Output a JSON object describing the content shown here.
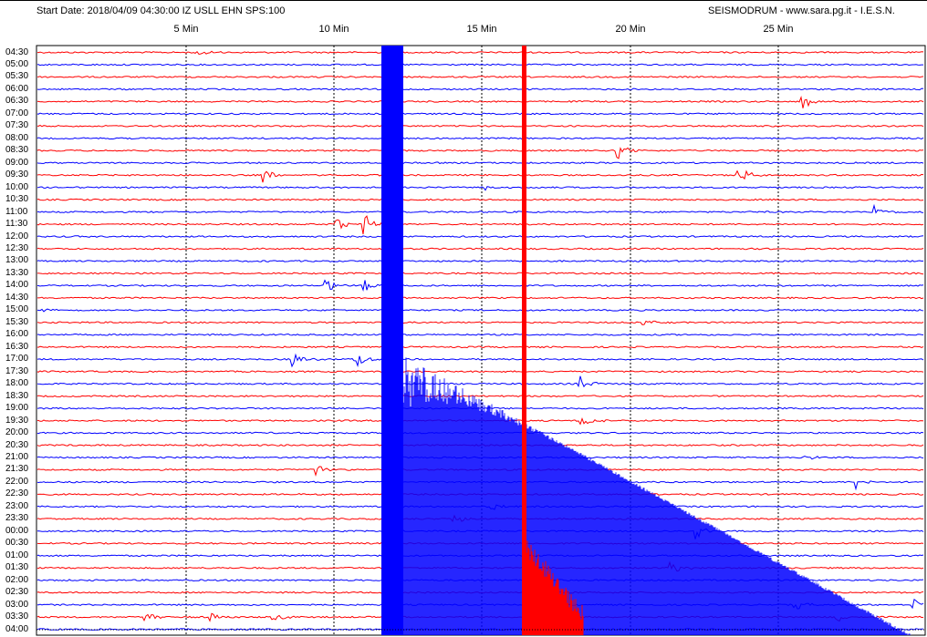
{
  "header": {
    "left_text": "Start Date: 2018/04/09 04:30:00 IZ USLL EHN SPS:100",
    "right_text": "SEISMODRUM - www.sara.pg.it - I.E.S.N."
  },
  "minute_labels": [
    "5 Min",
    "10 Min",
    "15 Min",
    "20 Min",
    "25 Min"
  ],
  "time_labels": [
    "04:30",
    "05:00",
    "05:30",
    "06:00",
    "06:30",
    "07:00",
    "07:30",
    "08:00",
    "08:30",
    "09:00",
    "09:30",
    "10:00",
    "10:30",
    "11:00",
    "11:30",
    "12:00",
    "12:30",
    "13:00",
    "13:30",
    "14:00",
    "14:30",
    "15:00",
    "15:30",
    "16:00",
    "16:30",
    "17:00",
    "17:30",
    "18:00",
    "18:30",
    "19:00",
    "19:30",
    "20:00",
    "20:30",
    "21:00",
    "21:30",
    "22:00",
    "22:30",
    "23:00",
    "23:30",
    "00:00",
    "00:30",
    "01:00",
    "01:30",
    "02:00",
    "02:30",
    "03:00",
    "03:30",
    "04:00"
  ],
  "colors": {
    "trace_a": "#ff0000",
    "trace_b": "#0000ff",
    "gridline": "#000000",
    "border": "#000000",
    "background": "#ffffff"
  }
}
